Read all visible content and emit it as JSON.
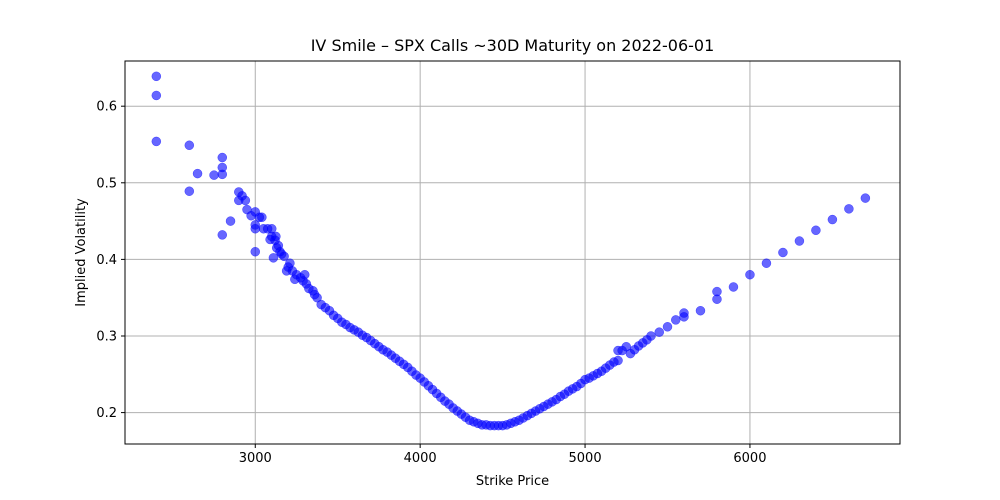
{
  "chart_data": {
    "type": "scatter",
    "title": "IV Smile – SPX Calls ~30D Maturity on 2022-06-01",
    "xlabel": "Strike Price",
    "ylabel": "Implied Volatility",
    "xlim": [
      2210,
      6910
    ],
    "ylim": [
      0.159,
      0.659
    ],
    "xticks": [
      3000,
      4000,
      5000,
      6000
    ],
    "xtick_labels": [
      "3000",
      "4000",
      "5000",
      "6000"
    ],
    "yticks": [
      0.2,
      0.3,
      0.4,
      0.5,
      0.6
    ],
    "ytick_labels": [
      "0.2",
      "0.3",
      "0.4",
      "0.5",
      "0.6"
    ],
    "grid": true,
    "marker_color": "#0000ff",
    "marker_opacity": 0.6,
    "series": [
      {
        "x": [
          2400,
          2400,
          2400,
          2600,
          2600,
          2650,
          2750,
          2800,
          2800,
          2800,
          2800,
          2850,
          2900,
          2900,
          2920,
          2940,
          2950,
          2975,
          3000,
          3000,
          3000,
          3000,
          3025,
          3040,
          3050,
          3075,
          3090,
          3100,
          3100,
          3110,
          3120,
          3125,
          3130,
          3140,
          3150,
          3160,
          3175,
          3190,
          3200,
          3210,
          3225,
          3240,
          3250,
          3275,
          3290,
          3300,
          3310,
          3325,
          3350,
          3360,
          3375,
          3400,
          3425,
          3450,
          3475,
          3500,
          3525,
          3550,
          3575,
          3600,
          3625,
          3650,
          3675,
          3700,
          3725,
          3750,
          3775,
          3800,
          3825,
          3850,
          3875,
          3900,
          3925,
          3950,
          3975,
          4000,
          4025,
          4050,
          4075,
          4100,
          4125,
          4150,
          4175,
          4200,
          4225,
          4250,
          4275,
          4300,
          4325,
          4350,
          4375,
          4400,
          4425,
          4450,
          4475,
          4500,
          4525,
          4550,
          4575,
          4600,
          4625,
          4650,
          4675,
          4700,
          4725,
          4750,
          4775,
          4800,
          4825,
          4850,
          4875,
          4900,
          4925,
          4950,
          4975,
          5000,
          5025,
          5050,
          5075,
          5100,
          5125,
          5150,
          5175,
          5200,
          5200,
          5225,
          5250,
          5275,
          5300,
          5325,
          5350,
          5375,
          5400,
          5450,
          5500,
          5550,
          5600,
          5600,
          5700,
          5800,
          5800,
          5900,
          6000,
          6100,
          6200,
          6300,
          6400,
          6500,
          6600,
          6700
        ],
        "y": [
          0.639,
          0.614,
          0.554,
          0.549,
          0.489,
          0.512,
          0.51,
          0.533,
          0.52,
          0.511,
          0.432,
          0.45,
          0.488,
          0.477,
          0.483,
          0.477,
          0.465,
          0.457,
          0.462,
          0.445,
          0.44,
          0.41,
          0.455,
          0.455,
          0.44,
          0.44,
          0.426,
          0.44,
          0.43,
          0.402,
          0.425,
          0.43,
          0.415,
          0.418,
          0.41,
          0.407,
          0.404,
          0.385,
          0.39,
          0.395,
          0.385,
          0.374,
          0.38,
          0.376,
          0.372,
          0.38,
          0.368,
          0.362,
          0.359,
          0.354,
          0.35,
          0.341,
          0.337,
          0.333,
          0.327,
          0.323,
          0.318,
          0.315,
          0.311,
          0.308,
          0.305,
          0.301,
          0.298,
          0.294,
          0.29,
          0.286,
          0.282,
          0.279,
          0.275,
          0.271,
          0.267,
          0.263,
          0.259,
          0.254,
          0.249,
          0.245,
          0.24,
          0.235,
          0.23,
          0.225,
          0.22,
          0.215,
          0.211,
          0.206,
          0.202,
          0.198,
          0.194,
          0.19,
          0.188,
          0.186,
          0.184,
          0.184,
          0.183,
          0.183,
          0.183,
          0.183,
          0.184,
          0.186,
          0.188,
          0.19,
          0.193,
          0.196,
          0.199,
          0.202,
          0.205,
          0.208,
          0.211,
          0.214,
          0.217,
          0.221,
          0.224,
          0.228,
          0.231,
          0.234,
          0.238,
          0.243,
          0.245,
          0.248,
          0.251,
          0.254,
          0.258,
          0.262,
          0.266,
          0.268,
          0.281,
          0.281,
          0.286,
          0.277,
          0.282,
          0.287,
          0.291,
          0.295,
          0.3,
          0.305,
          0.312,
          0.321,
          0.325,
          0.33,
          0.333,
          0.348,
          0.358,
          0.364,
          0.38,
          0.395,
          0.409,
          0.424,
          0.438,
          0.452,
          0.466,
          0.48
        ]
      }
    ]
  }
}
